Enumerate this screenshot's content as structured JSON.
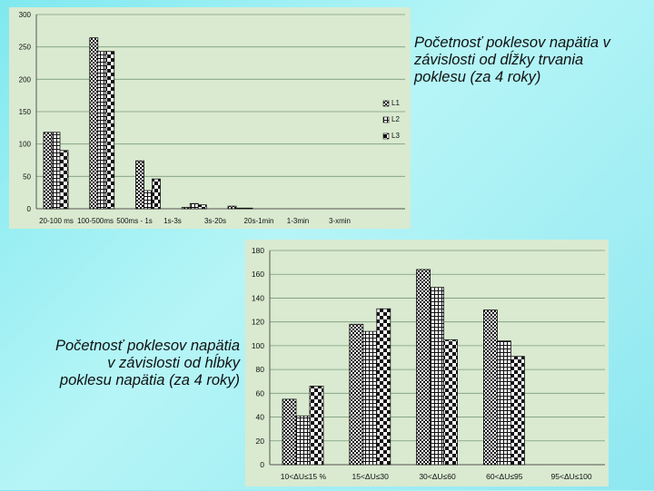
{
  "captions": {
    "top": "Početnosť poklesov napätia v závislosti od dĺžky trvania poklesu (za 4 roky)",
    "bottom": "Početnosť poklesov napätia v závislosti od hĺbky poklesu napätia (za 4 roky)"
  },
  "chart_data": [
    {
      "type": "bar",
      "title": "",
      "categories": [
        "20-100 ms",
        "100-500ms",
        "500ms - 1s",
        "1s-3s",
        "3s-20s",
        "20s-1min",
        "1-3min",
        "3-xmin"
      ],
      "series": [
        {
          "name": "L1",
          "values": [
            118,
            264,
            74,
            2,
            4,
            0,
            0,
            0
          ]
        },
        {
          "name": "L2",
          "values": [
            118,
            243,
            28,
            8,
            1,
            0,
            0,
            0
          ]
        },
        {
          "name": "L3",
          "values": [
            90,
            243,
            46,
            6,
            1,
            0,
            0,
            0
          ]
        }
      ],
      "ylim": [
        0,
        300
      ],
      "yticks": [
        0,
        50,
        100,
        150,
        200,
        250,
        300
      ],
      "legend_position": "right",
      "grid": true,
      "colors": {
        "plot_bg": "#d9ead0",
        "grid": "#7a9a7a",
        "bar_dark": "#111111",
        "bar_light": "#ffffff"
      }
    },
    {
      "type": "bar",
      "title": "",
      "categories": [
        "10<ΔU≤15 %",
        "15<ΔU≤30",
        "30<ΔU≤60",
        "60<ΔU≤95",
        "95<ΔU≤100"
      ],
      "series": [
        {
          "name": "L1",
          "values": [
            55,
            118,
            164,
            130,
            0
          ]
        },
        {
          "name": "L2",
          "values": [
            41,
            112,
            149,
            104,
            0
          ]
        },
        {
          "name": "L3",
          "values": [
            66,
            131,
            105,
            91,
            0
          ]
        }
      ],
      "ylim": [
        0,
        180
      ],
      "yticks": [
        0,
        20,
        40,
        60,
        80,
        100,
        120,
        140,
        160,
        180
      ],
      "legend_position": "right",
      "grid": true,
      "colors": {
        "plot_bg": "#d9ead0",
        "grid": "#7a9a7a",
        "bar_dark": "#111111",
        "bar_light": "#ffffff"
      }
    }
  ]
}
